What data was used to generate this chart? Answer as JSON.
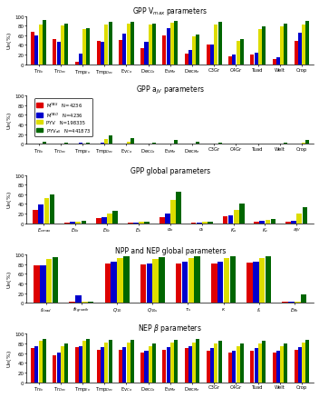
{
  "colors": [
    "#dd0000",
    "#0000cc",
    "#dddd00",
    "#006600"
  ],
  "legend_n": [
    "N=4236",
    "N=4236",
    "N=198335",
    "N=441873"
  ],
  "panel1_title": "GPP V$_{max}$ parameters",
  "panel1_cats": [
    "Tr$_{Ev}$",
    "Tr$_{Dec}$",
    "Tmp$_{Ev}$",
    "Tmp$_{Dec}$",
    "Ev$_{Co}$",
    "Dec$_{Co}$",
    "Ev$_{Me}$",
    "Dec$_{Me}$",
    "C3Gr",
    "C4Gr",
    "Tuad",
    "Welt",
    "Crop"
  ],
  "panel1_data": [
    [
      68,
      52,
      5,
      48,
      50,
      33,
      60,
      22,
      40,
      17,
      20,
      10,
      48
    ],
    [
      60,
      47,
      22,
      47,
      63,
      47,
      75,
      29,
      40,
      21,
      23,
      14,
      65
    ],
    [
      83,
      80,
      72,
      83,
      84,
      83,
      86,
      57,
      83,
      48,
      72,
      78,
      83
    ],
    [
      92,
      85,
      75,
      88,
      88,
      85,
      90,
      62,
      88,
      53,
      78,
      85,
      90
    ]
  ],
  "panel2_title": "GPP a$_{JV}$ parameters",
  "panel2_cats": [
    "Tr$_{Ev}$",
    "Tr$_{Dec}$",
    "Tmp$_{Ev}$",
    "Tmp$_{Dec}$",
    "Ev$_{Co}$",
    "Dec$_{Co}$",
    "Ev$_{Me}$",
    "Dec$_{Me}$",
    "C3Gr",
    "C4Gr",
    "Tuad",
    "Welt",
    "Crop"
  ],
  "panel2_data": [
    [
      0.3,
      0.3,
      0.3,
      0.5,
      0.3,
      0.3,
      0.5,
      0.3,
      0.3,
      0.3,
      0.3,
      0.3,
      0.5
    ],
    [
      0.5,
      0.5,
      1.5,
      1.5,
      0.5,
      0.5,
      0.5,
      0.5,
      0.3,
      0.3,
      0.3,
      0.3,
      0.5
    ],
    [
      0.5,
      0.5,
      0.5,
      10,
      5,
      0.5,
      0.5,
      0.5,
      0.5,
      0.3,
      0.3,
      0.5,
      1.5
    ],
    [
      5,
      1.5,
      1.5,
      17,
      12,
      1.5,
      7,
      4,
      1.5,
      0.3,
      0.5,
      1.5,
      7
    ]
  ],
  "panel3_title": "GPP global parameters",
  "panel3_cats": [
    "$E_{vmax}$",
    "$E_{Ko}$",
    "$E_{Kc}$",
    "$E_k$",
    "$\\alpha_o$",
    "$\\alpha_i$",
    "$K_o$",
    "$K_c$",
    "$a_{JV}$"
  ],
  "panel3_data": [
    [
      28,
      2,
      10,
      2,
      13,
      1,
      14,
      3,
      3
    ],
    [
      38,
      3,
      13,
      2,
      20,
      2,
      16,
      5,
      5
    ],
    [
      52,
      4,
      20,
      3,
      48,
      3,
      27,
      7,
      20
    ],
    [
      60,
      5,
      26,
      4,
      65,
      4,
      40,
      8,
      33
    ]
  ],
  "panel4_title": "NPP and NEP global parameters",
  "panel4_cats": [
    "$f_{dead}$",
    "$f_{Rgrowth}$",
    "$Q_{10}$",
    "$Q_{10s}$",
    "$\\tau_s$",
    "$\\kappa$",
    "$f_s$",
    "$E_{Rh}$"
  ],
  "panel4_data": [
    [
      78,
      3,
      82,
      80,
      82,
      82,
      83,
      3
    ],
    [
      78,
      15,
      85,
      82,
      85,
      85,
      85,
      3
    ],
    [
      90,
      3,
      93,
      91,
      92,
      92,
      92,
      3
    ],
    [
      95,
      3,
      97,
      95,
      96,
      96,
      96,
      18
    ]
  ],
  "panel5_title": "NEP $\\beta$ parameters",
  "panel5_cats": [
    "Tr$_{Ev}$",
    "Tr$_{Dec}$",
    "Tmp$_{Ev}$",
    "Tmp$_{Dec}$",
    "Ev$_{Co}$",
    "Dec$_{Co}$",
    "Ev$_{Me}$",
    "Dec$_{Me}$",
    "C3Gr",
    "C4Gr",
    "Tuad",
    "Welt",
    "Crop"
  ],
  "panel5_data": [
    [
      70,
      55,
      72,
      68,
      68,
      62,
      68,
      70,
      65,
      62,
      65,
      62,
      68
    ],
    [
      75,
      62,
      75,
      72,
      72,
      65,
      72,
      75,
      70,
      65,
      70,
      65,
      72
    ],
    [
      85,
      75,
      85,
      82,
      82,
      75,
      82,
      83,
      80,
      75,
      80,
      75,
      82
    ],
    [
      90,
      80,
      90,
      88,
      88,
      80,
      88,
      90,
      85,
      80,
      85,
      80,
      88
    ]
  ]
}
